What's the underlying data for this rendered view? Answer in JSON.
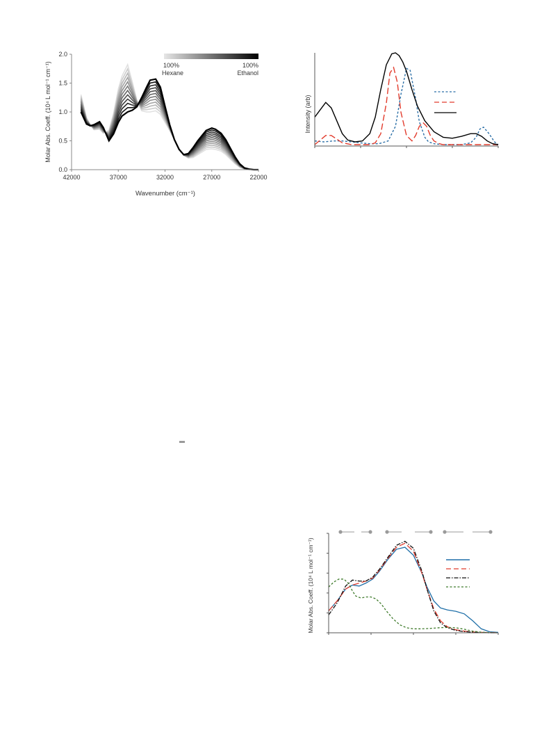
{
  "chart_data": [
    {
      "type": "line",
      "xlabel": "Wavenumber (cm⁻¹)",
      "ylabel": "Molar Abs. Coeff. (10⁴ L mol⁻¹ cm⁻¹)",
      "xlim": [
        42000,
        22000
      ],
      "ylim": [
        0,
        2.0
      ],
      "x_ticks": [
        "42000",
        "37000",
        "32000",
        "27000",
        "22000"
      ],
      "y_ticks": [
        "0.0",
        "0.5",
        "1.0",
        "1.5",
        "2.0"
      ],
      "x_tick_values": [
        42000,
        37000,
        32000,
        27000,
        22000
      ],
      "y_tick_values": [
        0,
        0.5,
        1.0,
        1.5,
        2.0
      ],
      "legend": {
        "start_label_1": "100%",
        "start_label_2": "Hexane",
        "end_label_1": "100%",
        "end_label_2": "Ethanol",
        "gradient_from": "#e6e6e6",
        "gradient_to": "#000000"
      },
      "series_count": 12,
      "first_series": {
        "color": "#dcdcdc",
        "x": [
          41000,
          40400,
          40000,
          39600,
          39000,
          38600,
          38000,
          37500,
          37000,
          36600,
          36000,
          35500,
          35000,
          34500,
          34000,
          33600,
          33000,
          32500,
          32000,
          31500,
          31000,
          30500,
          30000,
          29500,
          29000,
          28500,
          28000,
          27600,
          27000,
          26600,
          26000,
          25500,
          25000,
          24500,
          24000,
          23500,
          23000,
          22500,
          22000
        ],
        "y": [
          1.3,
          0.9,
          0.78,
          0.69,
          0.7,
          0.63,
          0.68,
          0.98,
          1.4,
          1.62,
          1.82,
          1.52,
          1.2,
          1.02,
          1.0,
          1.0,
          1.02,
          0.96,
          0.82,
          0.68,
          0.52,
          0.36,
          0.25,
          0.2,
          0.21,
          0.26,
          0.31,
          0.35,
          0.36,
          0.35,
          0.32,
          0.26,
          0.18,
          0.1,
          0.04,
          0.01,
          0.0,
          0.0,
          0.0
        ]
      },
      "last_series": {
        "color": "#000000",
        "x": [
          41000,
          40400,
          40000,
          39600,
          39000,
          38600,
          38000,
          37500,
          37000,
          36600,
          36000,
          35500,
          35000,
          34500,
          34000,
          33600,
          33000,
          32500,
          32000,
          31500,
          31000,
          30500,
          30000,
          29500,
          29000,
          28500,
          28000,
          27600,
          27000,
          26600,
          26000,
          25500,
          25000,
          24500,
          24000,
          23500,
          23000,
          22500,
          22000
        ],
        "y": [
          1.0,
          0.79,
          0.76,
          0.78,
          0.83,
          0.73,
          0.5,
          0.62,
          0.82,
          0.93,
          1.0,
          1.03,
          1.09,
          1.25,
          1.42,
          1.55,
          1.57,
          1.43,
          1.1,
          0.78,
          0.52,
          0.35,
          0.26,
          0.28,
          0.38,
          0.5,
          0.6,
          0.68,
          0.72,
          0.7,
          0.63,
          0.52,
          0.37,
          0.22,
          0.1,
          0.03,
          0.01,
          0.0,
          0.0
        ]
      }
    },
    {
      "type": "line",
      "ylabel": "Intensity (arb)",
      "xlim": [
        0,
        100
      ],
      "ylim": [
        0,
        1.0
      ],
      "x_tick_positions": [
        0,
        25,
        50,
        75,
        100
      ],
      "series": [
        {
          "color": "#2a6ea6",
          "dash": "3,2.5",
          "x": [
            0,
            5,
            10,
            15,
            20,
            25,
            30,
            35,
            40,
            44,
            47,
            50,
            52,
            55,
            57,
            60,
            62,
            65,
            70,
            75,
            80,
            85,
            88,
            90,
            92,
            95,
            98,
            100
          ],
          "y": [
            0.04,
            0.03,
            0.04,
            0.04,
            0.03,
            0.02,
            0.01,
            0.01,
            0.04,
            0.2,
            0.55,
            0.83,
            0.81,
            0.5,
            0.25,
            0.08,
            0.03,
            0.01,
            0.0,
            0.0,
            0.0,
            0.02,
            0.08,
            0.17,
            0.19,
            0.12,
            0.03,
            0.0
          ]
        },
        {
          "color": "#e23b2c",
          "dash": "9,4",
          "x": [
            0,
            3,
            6,
            9,
            12,
            15,
            20,
            25,
            30,
            33,
            36,
            39,
            41,
            43,
            45,
            47,
            50,
            53,
            55,
            57,
            59,
            61,
            63,
            65,
            68,
            70,
            75,
            80,
            85,
            90,
            95,
            100
          ],
          "y": [
            0.0,
            0.05,
            0.1,
            0.1,
            0.06,
            0.02,
            0.0,
            0.0,
            0.0,
            0.02,
            0.12,
            0.45,
            0.78,
            0.84,
            0.68,
            0.35,
            0.1,
            0.04,
            0.1,
            0.2,
            0.24,
            0.2,
            0.1,
            0.04,
            0.01,
            0.0,
            0.0,
            0.0,
            0.0,
            0.0,
            0.0,
            0.0
          ]
        },
        {
          "color": "#000000",
          "dash": "",
          "x": [
            0,
            3,
            6,
            9,
            12,
            15,
            18,
            22,
            26,
            30,
            33,
            36,
            39,
            42,
            44,
            46,
            48,
            50,
            53,
            56,
            60,
            65,
            70,
            75,
            80,
            85,
            88,
            91,
            94,
            97,
            100
          ],
          "y": [
            0.3,
            0.38,
            0.46,
            0.4,
            0.26,
            0.12,
            0.05,
            0.03,
            0.04,
            0.12,
            0.3,
            0.6,
            0.87,
            0.99,
            1.0,
            0.97,
            0.9,
            0.8,
            0.6,
            0.42,
            0.26,
            0.14,
            0.08,
            0.07,
            0.09,
            0.12,
            0.12,
            0.09,
            0.04,
            0.01,
            0.0
          ]
        }
      ]
    },
    {
      "type": "line",
      "ylabel": "Molar Abs. Coeff. (10⁴ L mol⁻¹ cm⁻¹)",
      "xlim": [
        0,
        100
      ],
      "ylim": [
        0,
        5
      ],
      "x_tick_positions": [
        0,
        25,
        50,
        75,
        100
      ],
      "y_tick_values": [
        0,
        1,
        2,
        3,
        4,
        5
      ],
      "series": [
        {
          "color": "#1f6fa8",
          "dash": "",
          "x": [
            0,
            5,
            10,
            14,
            18,
            22,
            26,
            30,
            35,
            40,
            45,
            50,
            55,
            58,
            62,
            66,
            70,
            75,
            80,
            85,
            90,
            95,
            100
          ],
          "y": [
            1.1,
            1.6,
            2.2,
            2.4,
            2.35,
            2.5,
            2.7,
            3.1,
            3.7,
            4.2,
            4.3,
            3.9,
            3.0,
            2.3,
            1.6,
            1.25,
            1.15,
            1.08,
            0.95,
            0.6,
            0.2,
            0.05,
            0.02
          ]
        },
        {
          "color": "#e23b2c",
          "dash": "9,4",
          "x": [
            0,
            5,
            10,
            14,
            18,
            22,
            26,
            30,
            35,
            40,
            45,
            50,
            55,
            58,
            62,
            66,
            70,
            75,
            80,
            85,
            90,
            95,
            100
          ],
          "y": [
            1.1,
            1.6,
            2.2,
            2.4,
            2.5,
            2.6,
            2.75,
            3.15,
            3.75,
            4.3,
            4.5,
            4.1,
            3.0,
            2.2,
            1.2,
            0.6,
            0.3,
            0.15,
            0.08,
            0.04,
            0.02,
            0.01,
            0.0
          ]
        },
        {
          "color": "#111111",
          "dash": "6,2,1.5,2",
          "x": [
            0,
            5,
            10,
            14,
            18,
            22,
            26,
            30,
            35,
            40,
            45,
            50,
            55,
            58,
            62,
            66,
            70,
            75,
            80,
            85,
            90,
            95,
            100
          ],
          "y": [
            0.9,
            1.5,
            2.35,
            2.65,
            2.6,
            2.6,
            2.8,
            3.2,
            3.8,
            4.4,
            4.6,
            4.25,
            3.1,
            2.2,
            1.1,
            0.5,
            0.25,
            0.12,
            0.06,
            0.03,
            0.01,
            0.0,
            0.0
          ]
        },
        {
          "color": "#3e7a2a",
          "dash": "3,2.5",
          "x": [
            0,
            3,
            6,
            9,
            12,
            14,
            16,
            19,
            22,
            25,
            28,
            31,
            34,
            38,
            42,
            46,
            50,
            55,
            60,
            65,
            70,
            75,
            80,
            85,
            90,
            95,
            100
          ],
          "y": [
            2.3,
            2.55,
            2.7,
            2.7,
            2.45,
            2.1,
            1.85,
            1.75,
            1.8,
            1.8,
            1.7,
            1.45,
            1.1,
            0.7,
            0.4,
            0.25,
            0.2,
            0.2,
            0.22,
            0.25,
            0.27,
            0.25,
            0.18,
            0.08,
            0.03,
            0.01,
            0.0
          ]
        }
      ]
    }
  ]
}
